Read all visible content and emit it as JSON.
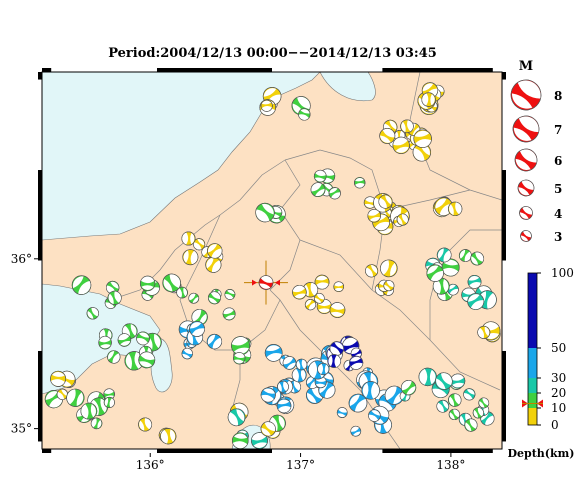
{
  "title": "Period:2004/12/13 00:00−−2014/12/13 03:45",
  "map": {
    "x_ticks": [
      {
        "label": "136°",
        "lon": 136
      },
      {
        "label": "137°",
        "lon": 137
      },
      {
        "label": "138°",
        "lon": 138
      }
    ],
    "y_ticks": [
      {
        "label": "36°",
        "lat": 36
      },
      {
        "label": "35°",
        "lat": 35
      }
    ],
    "lon_range": [
      135.28,
      138.34
    ],
    "lat_range": [
      34.88,
      37.1
    ],
    "colors": {
      "sea": "#e1f6f8",
      "land": "#fde1c3",
      "border": "#888888",
      "frame": "#000000",
      "mainshock": "#ee1111"
    },
    "mainshock": {
      "lon": 136.77,
      "lat": 35.86
    }
  },
  "magnitude_legend": {
    "title": "M",
    "items": [
      {
        "label": "8"
      },
      {
        "label": "7"
      },
      {
        "label": "6"
      },
      {
        "label": "5"
      },
      {
        "label": "4"
      },
      {
        "label": "3"
      }
    ],
    "color": "#ee1111"
  },
  "depth_scale": {
    "title": "Depth(km)",
    "ticks": [
      {
        "label": "100",
        "value": 100
      },
      {
        "label": "50",
        "value": 50
      },
      {
        "label": "30",
        "value": 30
      },
      {
        "label": "20",
        "value": 20
      },
      {
        "label": "10",
        "value": 10
      },
      {
        "label": "0",
        "value": 0
      }
    ],
    "bands": [
      {
        "from": 0,
        "to": 10,
        "color": "#f2d10a"
      },
      {
        "from": 10,
        "to": 20,
        "color": "#40d040"
      },
      {
        "from": 20,
        "to": 30,
        "color": "#19c8a8"
      },
      {
        "from": 30,
        "to": 50,
        "color": "#1aa6ea"
      },
      {
        "from": 50,
        "to": 100,
        "color": "#0a0ab0"
      }
    ],
    "marker_value": 13
  }
}
